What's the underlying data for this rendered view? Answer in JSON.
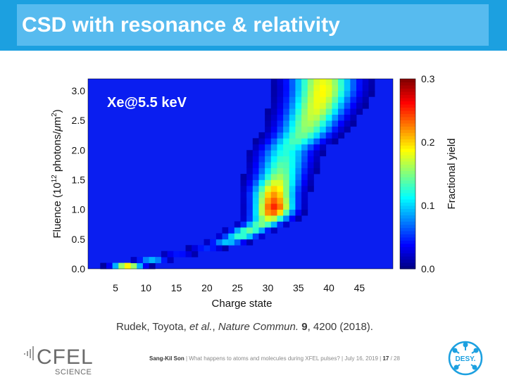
{
  "slide": {
    "title": "CSD with resonance & relativity"
  },
  "citation": {
    "authors": "Rudek, Toyota, ",
    "etal": "et al.",
    "sep": ", ",
    "journal": "Nature Commun.",
    "volume": "9",
    "pages_year": ", 4200 (2018)."
  },
  "footer": {
    "author": "Sang-Kil Son",
    "text": "  |  What happens to atoms and molecules during XFEL pulses?  |  July 16, 2019  |  ",
    "page": "17",
    "total": " / 28"
  },
  "logos": {
    "cfel_text": "CFEL",
    "cfel_sub": "SCIENCE",
    "desy_text": "DESY."
  },
  "colors": {
    "topbar": "#1ca0e0",
    "title_box": "#57bbef",
    "heatmap_background": "#0a1ef0"
  },
  "chart_data": {
    "type": "heatmap",
    "annotation": "Xe@5.5 keV",
    "xlabel": "Charge state",
    "ylabel_prefix": "Fluence (10",
    "ylabel_sup": "12",
    "ylabel_mid": " photons/",
    "ylabel_mu": "μ",
    "ylabel_tail": "m",
    "ylabel_sup2": "2",
    "ylabel_close": ")",
    "colorbar_label": "Fractional yield",
    "xlim": [
      1,
      50
    ],
    "ylim": [
      0.0,
      3.2
    ],
    "x_ticks": [
      5,
      10,
      15,
      20,
      25,
      30,
      35,
      40,
      45
    ],
    "y_ticks": [
      "0.0",
      "0.5",
      "1.0",
      "1.5",
      "2.0",
      "2.5",
      "3.0"
    ],
    "colorbar_range": [
      0.0,
      0.3
    ],
    "colorbar_ticks": [
      "0.0",
      "0.1",
      "0.2",
      "0.3"
    ],
    "colormap": "jet",
    "fluence_bins": 32,
    "ridge": [
      {
        "fluence": 0.05,
        "charge": 7,
        "yield": 0.19
      },
      {
        "fluence": 0.2,
        "charge": 13,
        "yield": 0.04
      },
      {
        "fluence": 0.35,
        "charge": 20,
        "yield": 0.05
      },
      {
        "fluence": 0.5,
        "charge": 25,
        "yield": 0.12
      },
      {
        "fluence": 0.6,
        "charge": 26,
        "yield": 0.14
      },
      {
        "fluence": 0.8,
        "charge": 30,
        "yield": 0.15
      },
      {
        "fluence": 1.0,
        "charge": 31,
        "yield": 0.26
      },
      {
        "fluence": 1.3,
        "charge": 31,
        "yield": 0.21
      },
      {
        "fluence": 1.6,
        "charge": 32,
        "yield": 0.15
      },
      {
        "fluence": 2.0,
        "charge": 33,
        "yield": 0.12
      },
      {
        "fluence": 2.3,
        "charge": 36,
        "yield": 0.15
      },
      {
        "fluence": 2.7,
        "charge": 38,
        "yield": 0.18
      },
      {
        "fluence": 3.0,
        "charge": 39,
        "yield": 0.19
      },
      {
        "fluence": 3.2,
        "charge": 39,
        "yield": 0.18
      }
    ]
  }
}
